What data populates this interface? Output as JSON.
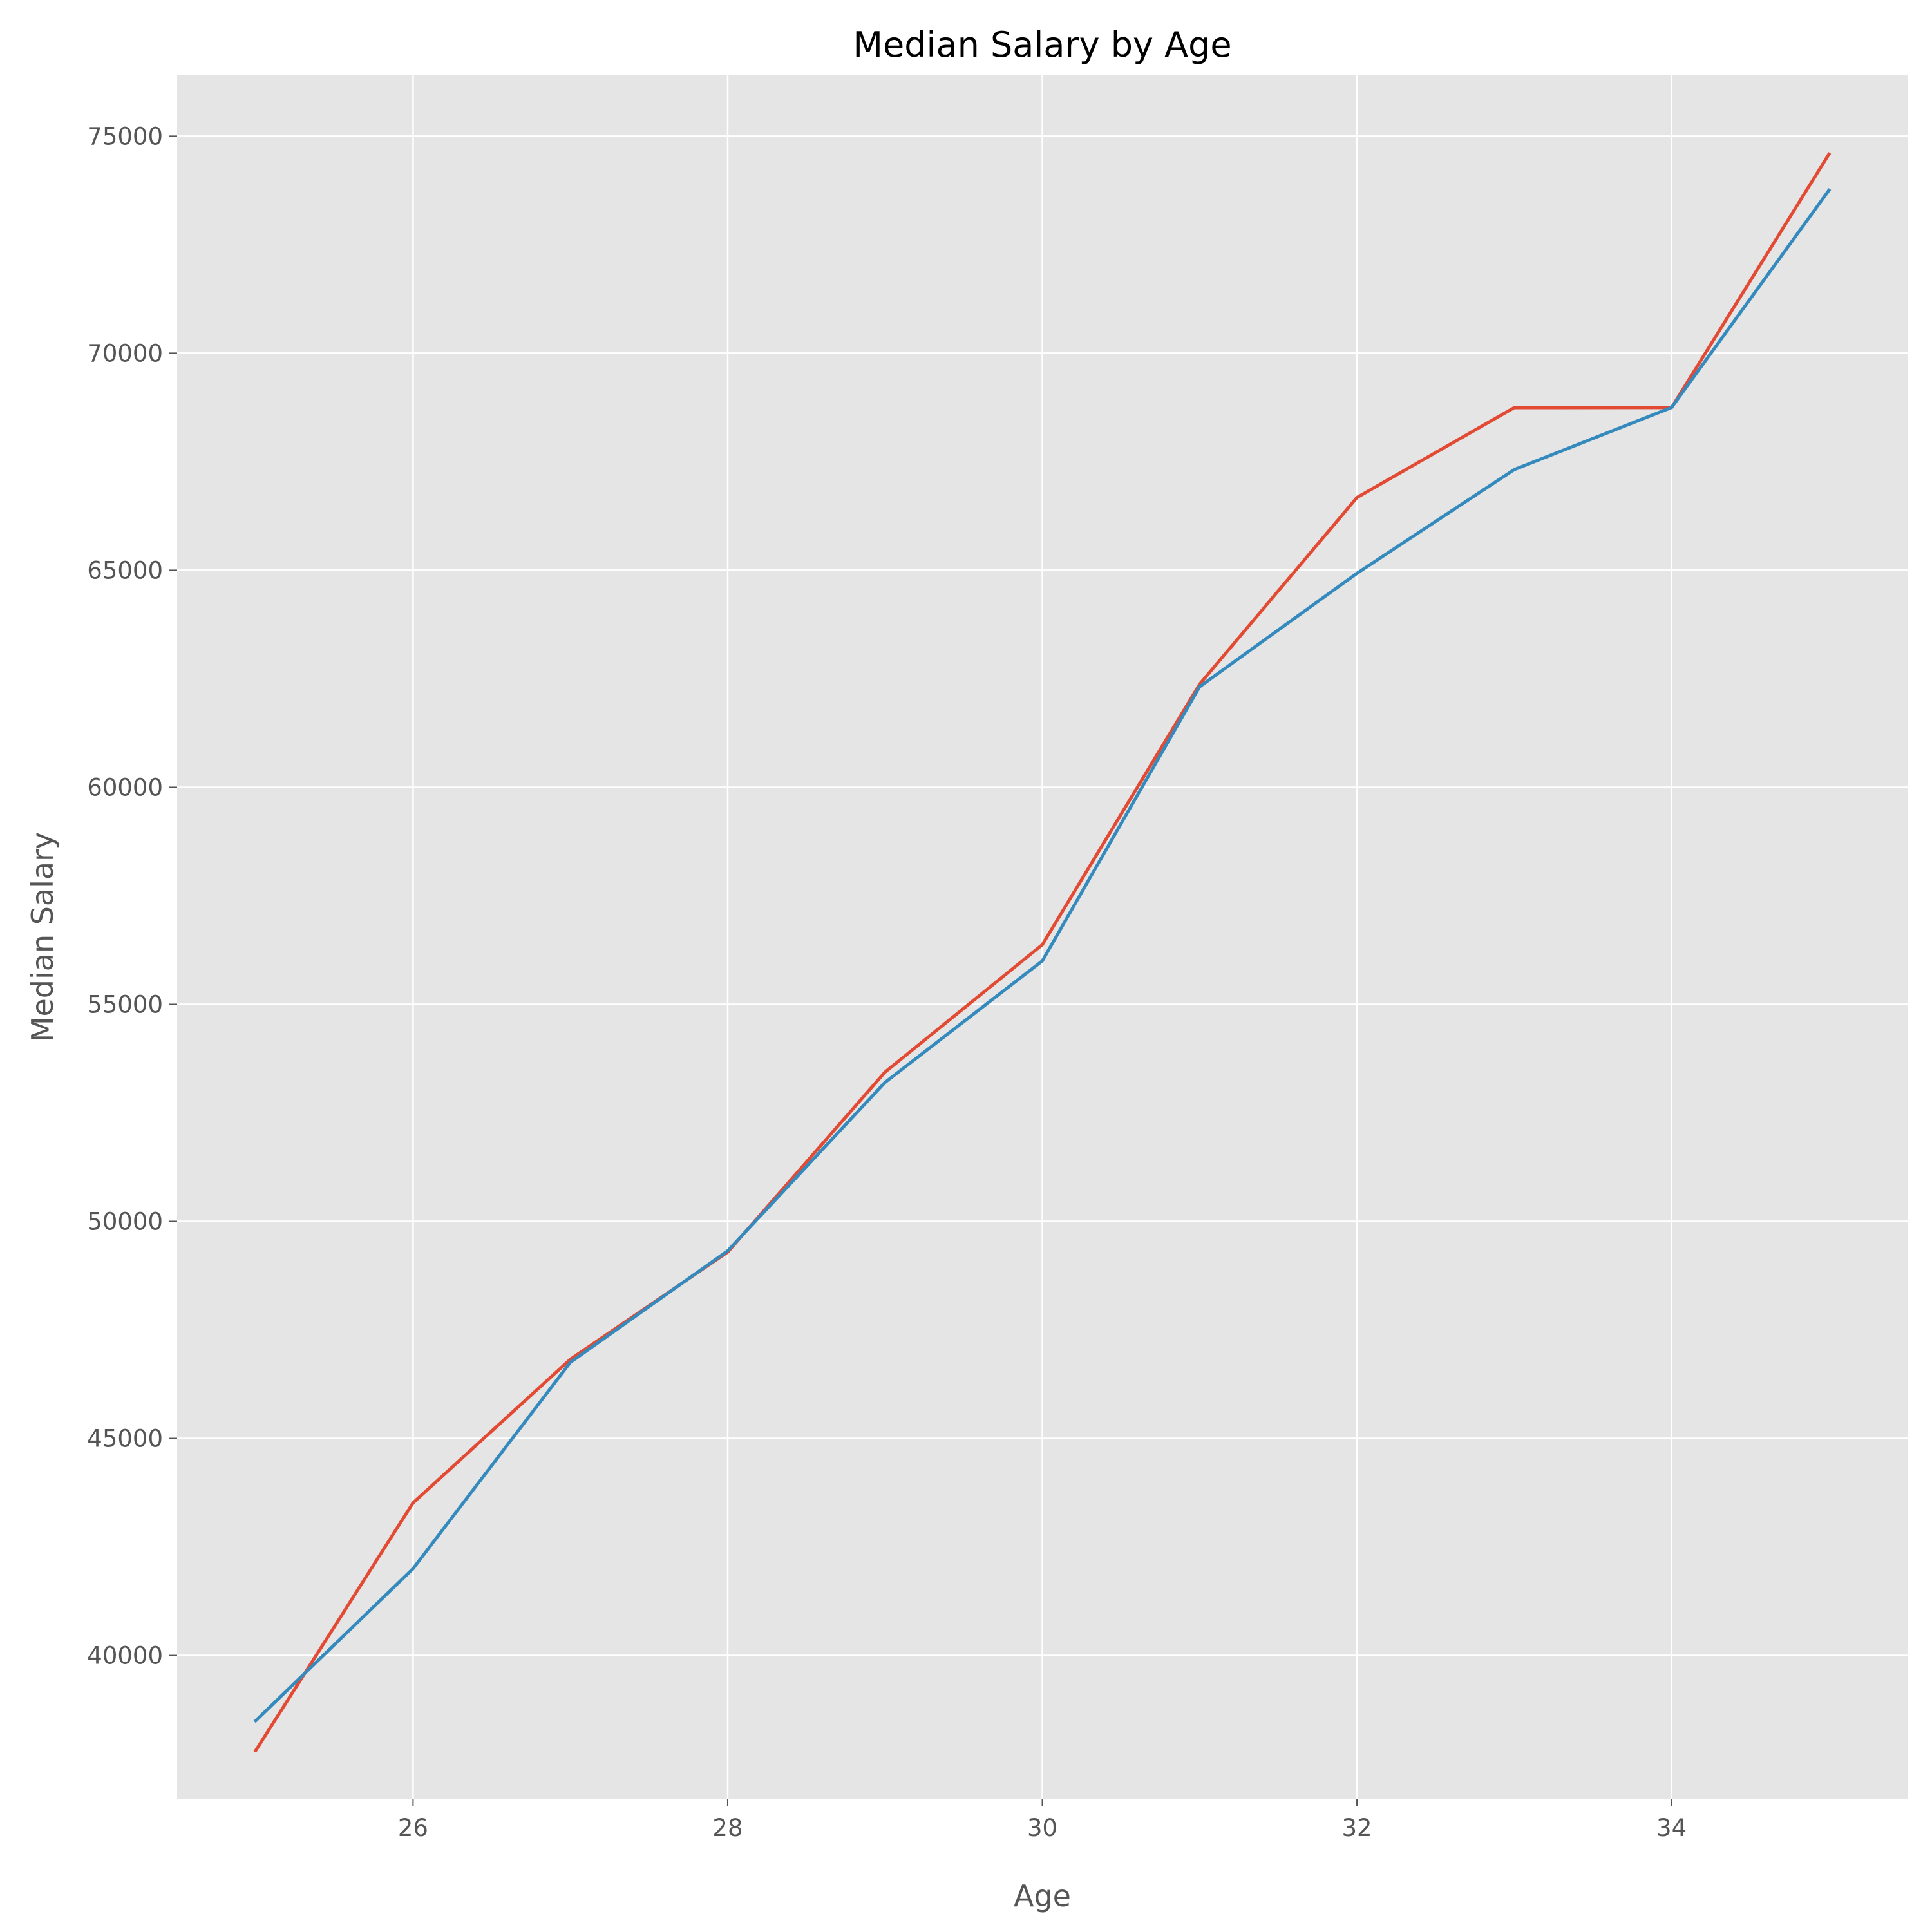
{
  "chart_data": {
    "type": "line",
    "title": "Median Salary by Age",
    "xlabel": "Age",
    "ylabel": "Median Salary",
    "xlim": [
      24.5,
      35.5
    ],
    "ylim": [
      36700,
      76400
    ],
    "x_ticks": [
      26,
      28,
      30,
      32,
      34
    ],
    "y_ticks": [
      40000,
      45000,
      50000,
      55000,
      60000,
      65000,
      70000,
      75000
    ],
    "grid": true,
    "legend": "none",
    "x": [
      25,
      26,
      27,
      28,
      29,
      30,
      31,
      32,
      33,
      34,
      35
    ],
    "series": [
      {
        "color": "#E24A33",
        "values": [
          37810,
          43515,
          46823,
          49293,
          53437,
          56373,
          62375,
          66674,
          68745,
          68746,
          74583
        ]
      },
      {
        "color": "#348ABD",
        "values": [
          38496,
          42000,
          46752,
          49320,
          53200,
          56000,
          62316,
          64928,
          67317,
          68748,
          73752
        ]
      }
    ],
    "colors": {
      "background": "#E5E5E5",
      "grid": "#FFFFFF",
      "text": "#555555"
    }
  }
}
